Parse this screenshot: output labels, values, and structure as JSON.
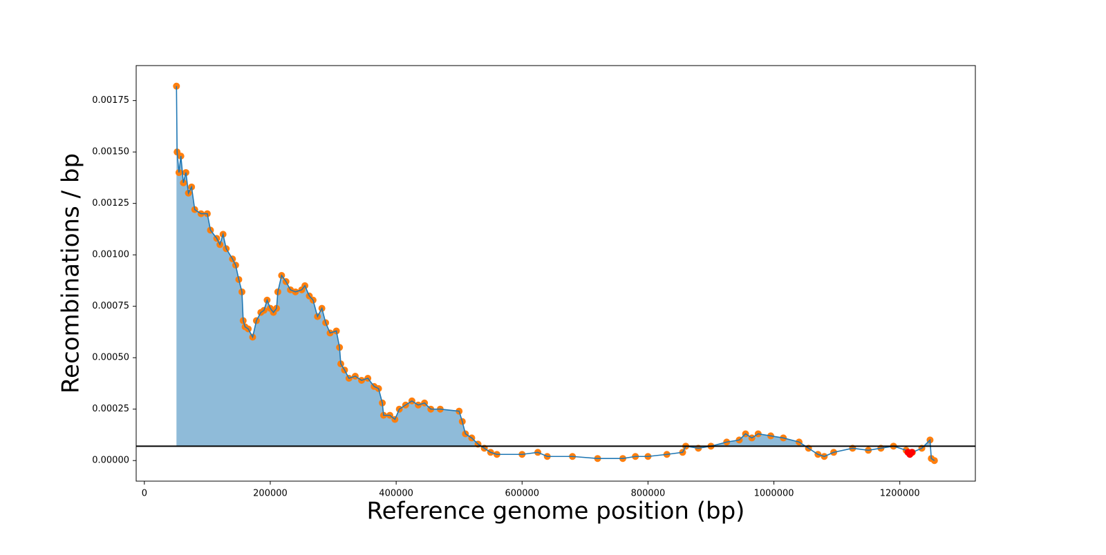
{
  "chart_data": {
    "type": "line",
    "xlabel": "Reference genome position (bp)",
    "ylabel": "Recombinations / bp",
    "xlim": [
      -13000,
      1320000
    ],
    "ylim": [
      -0.0001,
      0.00192
    ],
    "xticks": [
      0,
      200000,
      400000,
      600000,
      800000,
      1000000,
      1200000
    ],
    "yticks": [
      {
        "value": 0,
        "label": "0.00000"
      },
      {
        "value": 0.00025,
        "label": "0.00025"
      },
      {
        "value": 0.0005,
        "label": "0.00050"
      },
      {
        "value": 0.00075,
        "label": "0.00075"
      },
      {
        "value": 0.001,
        "label": "0.00100"
      },
      {
        "value": 0.00125,
        "label": "0.00125"
      },
      {
        "value": 0.0015,
        "label": "0.00150"
      },
      {
        "value": 0.00175,
        "label": "0.00175"
      }
    ],
    "hline": 7e-05,
    "hline_color": "#000000",
    "fill_color": "#1f77b4",
    "series": [
      {
        "color": "#ff7f0e",
        "line_color": "#1f77b4",
        "x": [
          51000,
          52000,
          55000,
          58000,
          62000,
          66000,
          70000,
          75000,
          80000,
          90000,
          100000,
          105000,
          115000,
          120000,
          125000,
          130000,
          140000,
          145000,
          150000,
          155000,
          157000,
          160000,
          165000,
          172000,
          178000,
          185000,
          190000,
          195000,
          200000,
          205000,
          210000,
          212000,
          218000,
          225000,
          232000,
          240000,
          250000,
          255000,
          262000,
          268000,
          275000,
          282000,
          288000,
          295000,
          305000,
          310000,
          312000,
          318000,
          325000,
          335000,
          345000,
          355000,
          365000,
          372000,
          378000,
          380000,
          390000,
          398000,
          405000,
          415000,
          425000,
          435000,
          445000,
          455000,
          470000,
          500000,
          505000,
          510000,
          520000,
          530000,
          540000,
          550000,
          560000,
          600000,
          625000,
          640000,
          680000,
          720000,
          760000,
          780000,
          800000,
          830000,
          855000,
          860000,
          880000,
          900000,
          925000,
          945000,
          955000,
          965000,
          975000,
          995000,
          1015000,
          1040000,
          1055000,
          1070000,
          1080000,
          1095000,
          1125000,
          1150000,
          1170000,
          1190000,
          1210000,
          1220000,
          1235000,
          1248000,
          1250000,
          1255000
        ],
        "values": [
          0.00182,
          0.0015,
          0.0014,
          0.00148,
          0.00135,
          0.0014,
          0.0013,
          0.00133,
          0.00122,
          0.0012,
          0.0012,
          0.00112,
          0.00108,
          0.00105,
          0.0011,
          0.00103,
          0.00098,
          0.00095,
          0.00088,
          0.00082,
          0.00068,
          0.00065,
          0.00064,
          0.0006,
          0.00068,
          0.00072,
          0.00073,
          0.00078,
          0.00074,
          0.00072,
          0.00074,
          0.00082,
          0.0009,
          0.00087,
          0.00083,
          0.00082,
          0.00083,
          0.00085,
          0.0008,
          0.00078,
          0.0007,
          0.00074,
          0.00067,
          0.00062,
          0.00063,
          0.00055,
          0.00047,
          0.00044,
          0.0004,
          0.00041,
          0.00039,
          0.0004,
          0.00036,
          0.00035,
          0.00028,
          0.00022,
          0.00022,
          0.0002,
          0.00025,
          0.00027,
          0.00029,
          0.00027,
          0.00028,
          0.00025,
          0.00025,
          0.00024,
          0.00019,
          0.00013,
          0.00011,
          8e-05,
          6e-05,
          4e-05,
          3e-05,
          3e-05,
          4e-05,
          2e-05,
          2e-05,
          1e-05,
          1e-05,
          2e-05,
          2e-05,
          3e-05,
          4e-05,
          7e-05,
          6e-05,
          7e-05,
          9e-05,
          0.0001,
          0.00013,
          0.00011,
          0.00013,
          0.00012,
          0.00011,
          9e-05,
          6e-05,
          3e-05,
          2e-05,
          4e-05,
          6e-05,
          5e-05,
          6e-05,
          7e-05,
          5e-05,
          4e-05,
          6e-05,
          0.0001,
          1e-05,
          0
        ]
      },
      {
        "color": "#ff0000",
        "x": [
          1213000,
          1216000,
          1219000
        ],
        "values": [
          4e-05,
          3e-05,
          4e-05
        ]
      }
    ]
  }
}
